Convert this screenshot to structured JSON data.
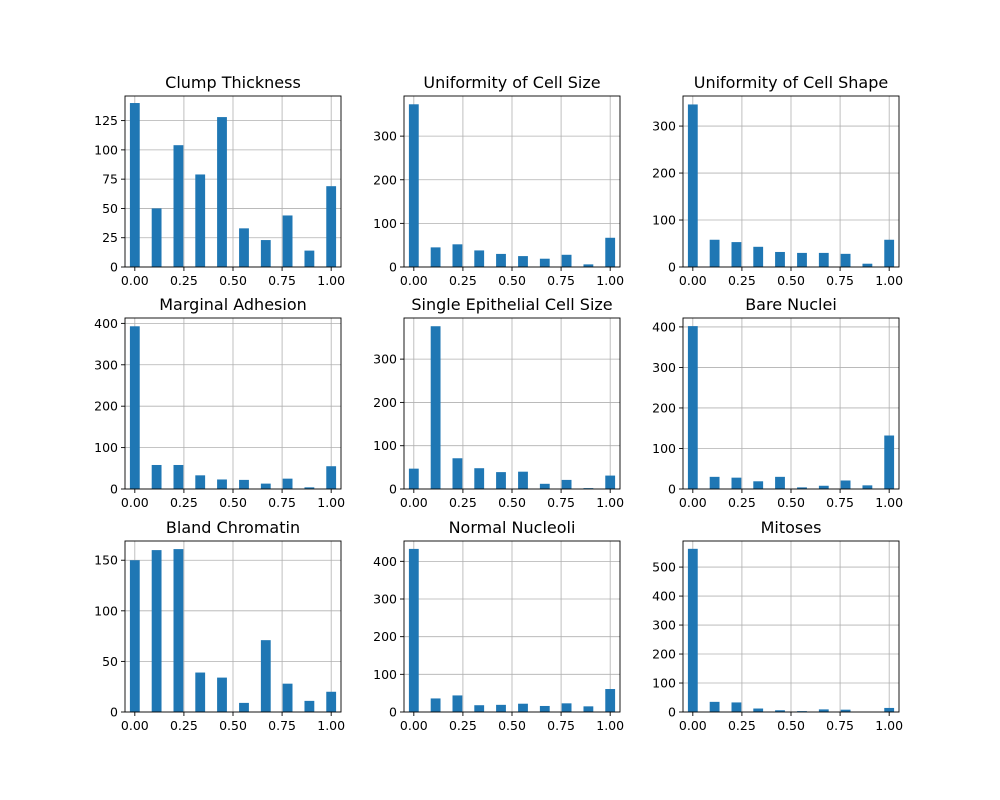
{
  "chart_data": [
    {
      "type": "bar",
      "title": "Clump Thickness",
      "x": [
        0.0,
        0.111,
        0.222,
        0.333,
        0.444,
        0.556,
        0.667,
        0.778,
        0.889,
        1.0
      ],
      "values": [
        140,
        50,
        104,
        79,
        128,
        33,
        23,
        44,
        14,
        69
      ],
      "xlim": [
        -0.05,
        1.05
      ],
      "ylim": [
        0,
        146
      ],
      "xticks": [
        "0.00",
        "0.25",
        "0.50",
        "0.75",
        "1.00"
      ],
      "yticks": [
        "0",
        "25",
        "50",
        "75",
        "100",
        "125"
      ],
      "color": "#1f77b4",
      "grid": true
    },
    {
      "type": "bar",
      "title": "Uniformity of Cell Size",
      "x": [
        0.0,
        0.111,
        0.222,
        0.333,
        0.444,
        0.556,
        0.667,
        0.778,
        0.889,
        1.0
      ],
      "values": [
        373,
        45,
        52,
        38,
        30,
        25,
        19,
        28,
        6,
        67
      ],
      "xlim": [
        -0.05,
        1.05
      ],
      "ylim": [
        0,
        392
      ],
      "xticks": [
        "0.00",
        "0.25",
        "0.50",
        "0.75",
        "1.00"
      ],
      "yticks": [
        "0",
        "100",
        "200",
        "300"
      ],
      "color": "#1f77b4",
      "grid": true
    },
    {
      "type": "bar",
      "title": "Uniformity of Cell Shape",
      "x": [
        0.0,
        0.111,
        0.222,
        0.333,
        0.444,
        0.556,
        0.667,
        0.778,
        0.889,
        1.0
      ],
      "values": [
        346,
        58,
        53,
        43,
        32,
        30,
        30,
        28,
        7,
        58
      ],
      "xlim": [
        -0.05,
        1.05
      ],
      "ylim": [
        0,
        364
      ],
      "xticks": [
        "0.00",
        "0.25",
        "0.50",
        "0.75",
        "1.00"
      ],
      "yticks": [
        "0",
        "100",
        "200",
        "300"
      ],
      "color": "#1f77b4",
      "grid": true
    },
    {
      "type": "bar",
      "title": "Marginal Adhesion",
      "x": [
        0.0,
        0.111,
        0.222,
        0.333,
        0.444,
        0.556,
        0.667,
        0.778,
        0.889,
        1.0
      ],
      "values": [
        393,
        58,
        58,
        33,
        23,
        22,
        13,
        25,
        4,
        55
      ],
      "xlim": [
        -0.05,
        1.05
      ],
      "ylim": [
        0,
        413
      ],
      "xticks": [
        "0.00",
        "0.25",
        "0.50",
        "0.75",
        "1.00"
      ],
      "yticks": [
        "0",
        "100",
        "200",
        "300",
        "400"
      ],
      "color": "#1f77b4",
      "grid": true
    },
    {
      "type": "bar",
      "title": "Single Epithelial Cell Size",
      "x": [
        0.0,
        0.111,
        0.222,
        0.333,
        0.444,
        0.556,
        0.667,
        0.778,
        0.889,
        1.0
      ],
      "values": [
        47,
        376,
        71,
        48,
        39,
        40,
        12,
        21,
        2,
        31
      ],
      "xlim": [
        -0.05,
        1.05
      ],
      "ylim": [
        0,
        395
      ],
      "xticks": [
        "0.00",
        "0.25",
        "0.50",
        "0.75",
        "1.00"
      ],
      "yticks": [
        "0",
        "100",
        "200",
        "300"
      ],
      "color": "#1f77b4",
      "grid": true
    },
    {
      "type": "bar",
      "title": "Bare Nuclei",
      "x": [
        0.0,
        0.111,
        0.222,
        0.333,
        0.444,
        0.556,
        0.667,
        0.778,
        0.889,
        1.0
      ],
      "values": [
        402,
        30,
        28,
        19,
        30,
        4,
        8,
        21,
        9,
        132
      ],
      "xlim": [
        -0.05,
        1.05
      ],
      "ylim": [
        0,
        422
      ],
      "xticks": [
        "0.00",
        "0.25",
        "0.50",
        "0.75",
        "1.00"
      ],
      "yticks": [
        "0",
        "100",
        "200",
        "300",
        "400"
      ],
      "color": "#1f77b4",
      "grid": true
    },
    {
      "type": "bar",
      "title": "Bland Chromatin",
      "x": [
        0.0,
        0.111,
        0.222,
        0.333,
        0.444,
        0.556,
        0.667,
        0.778,
        0.889,
        1.0
      ],
      "values": [
        150,
        160,
        161,
        39,
        34,
        9,
        71,
        28,
        11,
        20
      ],
      "xlim": [
        -0.05,
        1.05
      ],
      "ylim": [
        0,
        169
      ],
      "xticks": [
        "0.00",
        "0.25",
        "0.50",
        "0.75",
        "1.00"
      ],
      "yticks": [
        "0",
        "50",
        "100",
        "150"
      ],
      "color": "#1f77b4",
      "grid": true
    },
    {
      "type": "bar",
      "title": "Normal Nucleoli",
      "x": [
        0.0,
        0.111,
        0.222,
        0.333,
        0.444,
        0.556,
        0.667,
        0.778,
        0.889,
        1.0
      ],
      "values": [
        433,
        36,
        44,
        18,
        19,
        22,
        16,
        23,
        15,
        61
      ],
      "xlim": [
        -0.05,
        1.05
      ],
      "ylim": [
        0,
        454
      ],
      "xticks": [
        "0.00",
        "0.25",
        "0.50",
        "0.75",
        "1.00"
      ],
      "yticks": [
        "0",
        "100",
        "200",
        "300",
        "400"
      ],
      "color": "#1f77b4",
      "grid": true
    },
    {
      "type": "bar",
      "title": "Mitoses",
      "x": [
        0.0,
        0.111,
        0.222,
        0.333,
        0.444,
        0.556,
        0.667,
        0.778,
        0.889,
        1.0
      ],
      "values": [
        563,
        35,
        33,
        12,
        6,
        3,
        9,
        8,
        0,
        14
      ],
      "xlim": [
        -0.05,
        1.05
      ],
      "ylim": [
        0,
        590
      ],
      "xticks": [
        "0.00",
        "0.25",
        "0.50",
        "0.75",
        "1.00"
      ],
      "yticks": [
        "0",
        "100",
        "200",
        "300",
        "400",
        "500"
      ],
      "color": "#1f77b4",
      "grid": true
    }
  ]
}
